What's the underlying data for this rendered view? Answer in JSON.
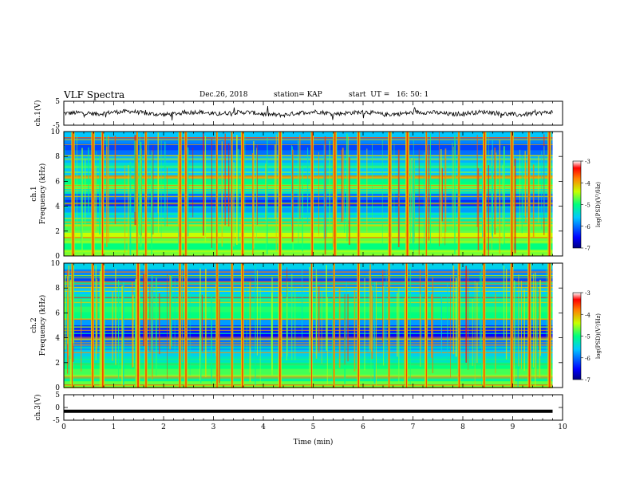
{
  "header": {
    "title": "VLF Spectra",
    "date": "Dec.26, 2018",
    "station": "station= KAP",
    "start": "start  UT =   16: 50: 1"
  },
  "chart_data": [
    {
      "type": "line",
      "panel": "ch1-waveform",
      "ylabel": "ch.1(V)",
      "ylim": [
        -5,
        5
      ],
      "yticks": [
        "5",
        "-5"
      ],
      "xlim": [
        0,
        10
      ],
      "trace_color": "#000000",
      "series": [
        {
          "values": [
            0.0,
            0.2,
            -0.3,
            0.5,
            0.8,
            -0.2,
            -0.6,
            0.1,
            0.6,
            -0.4,
            0.3,
            0.4,
            -0.5,
            -0.8,
            0.2,
            0.7,
            -0.3,
            0.2,
            0.5,
            -0.6,
            -0.2,
            0.4,
            0.3,
            -0.5,
            0.1,
            0.6,
            -0.2,
            -0.7,
            0.0,
            0.5
          ]
        }
      ]
    },
    {
      "type": "heatmap",
      "panel": "ch1-spectrogram",
      "ylabel": "ch.1 Frequency (kHz)",
      "xlim": [
        0,
        10
      ],
      "ylim": [
        0,
        10
      ],
      "xticks": [
        "0",
        "1",
        "2",
        "3",
        "4",
        "5",
        "6",
        "7",
        "8",
        "9",
        "10"
      ],
      "yticks": [
        "0",
        "2",
        "4",
        "6",
        "8",
        "10"
      ],
      "data_end_min": 9.8,
      "colorbar": {
        "label": "log(PSD)(V²/Hz)",
        "range": [
          -7,
          -3
        ],
        "ticks": [
          "-3",
          "-4",
          "-5",
          "-6",
          "-7"
        ]
      },
      "band_levels_high_to_low_freq": [
        -5.6,
        -5.9,
        -6.2,
        -6.0,
        -5.7,
        -5.4,
        -5.6,
        -5.2,
        -5.0,
        -5.3,
        -6.0,
        -6.3,
        -5.8,
        -5.5,
        -5.2,
        -4.8,
        -4.4,
        -4.7,
        -5.0,
        -4.6
      ],
      "burst_times_min": [
        0.15,
        0.55,
        0.75,
        1.45,
        1.62,
        2.3,
        2.42,
        3.05,
        3.35,
        3.55,
        4.3,
        4.95,
        5.4,
        5.88,
        6.5,
        6.85,
        7.25,
        7.9,
        8.4,
        8.95,
        9.3,
        9.7
      ]
    },
    {
      "type": "heatmap",
      "panel": "ch2-spectrogram",
      "ylabel": "ch.2 Frequency (kHz)",
      "xlim": [
        0,
        10
      ],
      "ylim": [
        0,
        10
      ],
      "xticks": [
        "0",
        "1",
        "2",
        "3",
        "4",
        "5",
        "6",
        "7",
        "8",
        "9",
        "10"
      ],
      "yticks": [
        "0",
        "2",
        "4",
        "6",
        "8",
        "10"
      ],
      "data_end_min": 9.8,
      "colorbar": {
        "label": "log(PSD)(V²/Hz)",
        "range": [
          -7,
          -3
        ],
        "ticks": [
          "-3",
          "-4",
          "-5",
          "-6",
          "-7"
        ]
      },
      "band_levels_high_to_low_freq": [
        -5.5,
        -5.9,
        -6.2,
        -5.9,
        -5.6,
        -5.3,
        -5.2,
        -4.9,
        -5.0,
        -5.8,
        -6.3,
        -6.5,
        -6.0,
        -5.8,
        -5.5,
        -5.3,
        -5.0,
        -4.8,
        -5.1,
        -4.7
      ],
      "burst_times_min": [
        0.15,
        0.55,
        0.75,
        1.45,
        1.62,
        2.3,
        2.42,
        3.05,
        3.35,
        3.55,
        4.3,
        4.95,
        5.4,
        5.88,
        6.5,
        6.85,
        7.25,
        7.9,
        8.4,
        8.95,
        9.3,
        9.7
      ]
    },
    {
      "type": "line",
      "panel": "ch3-waveform",
      "ylabel": "ch.3(V)",
      "ylim": [
        -5,
        5
      ],
      "yticks": [
        "5",
        "0",
        "-5"
      ],
      "xlim": [
        0,
        10
      ],
      "xticks": [
        "0",
        "1",
        "2",
        "3",
        "4",
        "5",
        "6",
        "7",
        "8",
        "9",
        "10"
      ],
      "xlabel": "Time (min)",
      "series": [
        {
          "values": [
            -1.5,
            -1.5
          ]
        }
      ]
    }
  ]
}
